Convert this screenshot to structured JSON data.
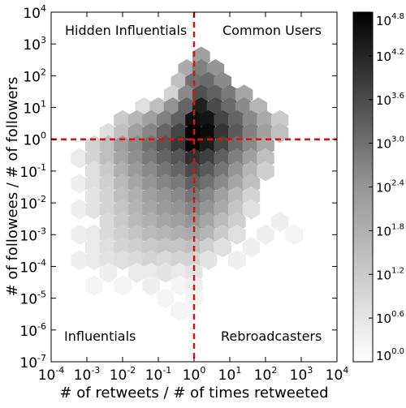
{
  "chart_data": {
    "type": "heatmap",
    "subtype": "hexbin",
    "xlabel": "# of retweets / # of times retweeted",
    "ylabel": "# of followees / # of followers",
    "x_scale": "log",
    "y_scale": "log",
    "xlim": [
      0.0001,
      10000
    ],
    "ylim": [
      1e-07,
      10000
    ],
    "x_ticks": [
      {
        "base": "10",
        "exp": "-4"
      },
      {
        "base": "10",
        "exp": "-3"
      },
      {
        "base": "10",
        "exp": "-2"
      },
      {
        "base": "10",
        "exp": "-1"
      },
      {
        "base": "10",
        "exp": "0"
      },
      {
        "base": "10",
        "exp": "1"
      },
      {
        "base": "10",
        "exp": "2"
      },
      {
        "base": "10",
        "exp": "3"
      },
      {
        "base": "10",
        "exp": "4"
      }
    ],
    "y_ticks": [
      {
        "base": "10",
        "exp": "-7"
      },
      {
        "base": "10",
        "exp": "-6"
      },
      {
        "base": "10",
        "exp": "-5"
      },
      {
        "base": "10",
        "exp": "-4"
      },
      {
        "base": "10",
        "exp": "-3"
      },
      {
        "base": "10",
        "exp": "-2"
      },
      {
        "base": "10",
        "exp": "-1"
      },
      {
        "base": "10",
        "exp": "0"
      },
      {
        "base": "10",
        "exp": "1"
      },
      {
        "base": "10",
        "exp": "2"
      },
      {
        "base": "10",
        "exp": "3"
      },
      {
        "base": "10",
        "exp": "4"
      }
    ],
    "reference_lines": {
      "x": 1,
      "y": 1,
      "color": "#e01010",
      "style": "dashed"
    },
    "quadrant_labels": {
      "top_left": "Hidden Influentials",
      "top_right": "Common Users",
      "bottom_left": "Influentials",
      "bottom_right": "Rebroadcasters"
    },
    "colorbar": {
      "colormap": "gray_r",
      "range_log10": [
        0.0,
        4.8
      ],
      "ticks": [
        {
          "base": "10",
          "exp": "0.0"
        },
        {
          "base": "10",
          "exp": "0.6"
        },
        {
          "base": "10",
          "exp": "1.2"
        },
        {
          "base": "10",
          "exp": "1.8"
        },
        {
          "base": "10",
          "exp": "2.4"
        },
        {
          "base": "10",
          "exp": "3.0"
        },
        {
          "base": "10",
          "exp": "3.6"
        },
        {
          "base": "10",
          "exp": "4.2"
        },
        {
          "base": "10",
          "exp": "4.8"
        }
      ]
    },
    "hex_bins_log10count": [
      {
        "lx": 0.2,
        "ly": 2.6,
        "v": 1.8
      },
      {
        "lx": -0.2,
        "ly": 2.2,
        "v": 1.6
      },
      {
        "lx": 0.2,
        "ly": 2.2,
        "v": 2.4
      },
      {
        "lx": 0.6,
        "ly": 2.2,
        "v": 2.0
      },
      {
        "lx": -0.4,
        "ly": 1.8,
        "v": 1.2
      },
      {
        "lx": 0.0,
        "ly": 1.8,
        "v": 2.7
      },
      {
        "lx": 0.4,
        "ly": 1.8,
        "v": 2.8
      },
      {
        "lx": 0.8,
        "ly": 1.8,
        "v": 2.2
      },
      {
        "lx": -0.6,
        "ly": 1.4,
        "v": 0.8
      },
      {
        "lx": -0.2,
        "ly": 1.4,
        "v": 2.2
      },
      {
        "lx": 0.2,
        "ly": 1.4,
        "v": 3.3
      },
      {
        "lx": 0.6,
        "ly": 1.4,
        "v": 3.0
      },
      {
        "lx": 1.0,
        "ly": 1.4,
        "v": 2.5
      },
      {
        "lx": 1.4,
        "ly": 1.4,
        "v": 1.7
      },
      {
        "lx": -1.4,
        "ly": 1.0,
        "v": 0.6
      },
      {
        "lx": -1.0,
        "ly": 1.0,
        "v": 1.2
      },
      {
        "lx": -0.6,
        "ly": 1.0,
        "v": 2.0
      },
      {
        "lx": -0.2,
        "ly": 1.0,
        "v": 2.9
      },
      {
        "lx": 0.2,
        "ly": 1.0,
        "v": 4.2
      },
      {
        "lx": 0.6,
        "ly": 1.0,
        "v": 3.4
      },
      {
        "lx": 1.0,
        "ly": 1.0,
        "v": 2.8
      },
      {
        "lx": 1.4,
        "ly": 1.0,
        "v": 2.2
      },
      {
        "lx": 1.8,
        "ly": 1.0,
        "v": 1.4
      },
      {
        "lx": -2.0,
        "ly": 0.6,
        "v": 1.0
      },
      {
        "lx": -1.6,
        "ly": 0.6,
        "v": 1.4
      },
      {
        "lx": -1.2,
        "ly": 0.6,
        "v": 1.8
      },
      {
        "lx": -0.8,
        "ly": 0.6,
        "v": 2.4
      },
      {
        "lx": -0.4,
        "ly": 0.6,
        "v": 3.0
      },
      {
        "lx": 0.0,
        "ly": 0.6,
        "v": 4.5
      },
      {
        "lx": 0.4,
        "ly": 0.6,
        "v": 4.4
      },
      {
        "lx": 0.8,
        "ly": 0.6,
        "v": 3.5
      },
      {
        "lx": 1.2,
        "ly": 0.6,
        "v": 2.9
      },
      {
        "lx": 1.6,
        "ly": 0.6,
        "v": 2.2
      },
      {
        "lx": 2.0,
        "ly": 0.6,
        "v": 1.6
      },
      {
        "lx": 2.4,
        "ly": 0.6,
        "v": 1.0
      },
      {
        "lx": -2.4,
        "ly": 0.2,
        "v": 0.6
      },
      {
        "lx": -2.0,
        "ly": 0.2,
        "v": 1.2
      },
      {
        "lx": -1.6,
        "ly": 0.2,
        "v": 1.8
      },
      {
        "lx": -1.2,
        "ly": 0.2,
        "v": 2.3
      },
      {
        "lx": -0.8,
        "ly": 0.2,
        "v": 2.9
      },
      {
        "lx": -0.4,
        "ly": 0.2,
        "v": 3.5
      },
      {
        "lx": 0.0,
        "ly": 0.2,
        "v": 4.8
      },
      {
        "lx": 0.4,
        "ly": 0.2,
        "v": 4.6
      },
      {
        "lx": 0.8,
        "ly": 0.2,
        "v": 3.8
      },
      {
        "lx": 1.2,
        "ly": 0.2,
        "v": 3.1
      },
      {
        "lx": 1.6,
        "ly": 0.2,
        "v": 2.4
      },
      {
        "lx": 2.0,
        "ly": 0.2,
        "v": 1.8
      },
      {
        "lx": 2.4,
        "ly": 0.2,
        "v": 1.2
      },
      {
        "lx": -2.8,
        "ly": -0.2,
        "v": 0.8
      },
      {
        "lx": -2.4,
        "ly": -0.2,
        "v": 1.2
      },
      {
        "lx": -2.0,
        "ly": -0.2,
        "v": 1.8
      },
      {
        "lx": -1.6,
        "ly": -0.2,
        "v": 2.2
      },
      {
        "lx": -1.2,
        "ly": -0.2,
        "v": 2.7
      },
      {
        "lx": -0.8,
        "ly": -0.2,
        "v": 3.2
      },
      {
        "lx": -0.4,
        "ly": -0.2,
        "v": 3.7
      },
      {
        "lx": 0.0,
        "ly": -0.2,
        "v": 4.7
      },
      {
        "lx": 0.4,
        "ly": -0.2,
        "v": 4.3
      },
      {
        "lx": 0.8,
        "ly": -0.2,
        "v": 3.5
      },
      {
        "lx": 1.2,
        "ly": -0.2,
        "v": 2.8
      },
      {
        "lx": 1.6,
        "ly": -0.2,
        "v": 2.2
      },
      {
        "lx": 2.0,
        "ly": -0.2,
        "v": 1.6
      },
      {
        "lx": -3.2,
        "ly": -0.6,
        "v": 0.4
      },
      {
        "lx": -2.8,
        "ly": -0.6,
        "v": 0.8
      },
      {
        "lx": -2.4,
        "ly": -0.6,
        "v": 1.2
      },
      {
        "lx": -2.0,
        "ly": -0.6,
        "v": 1.7
      },
      {
        "lx": -1.6,
        "ly": -0.6,
        "v": 2.1
      },
      {
        "lx": -1.2,
        "ly": -0.6,
        "v": 2.5
      },
      {
        "lx": -0.8,
        "ly": -0.6,
        "v": 2.9
      },
      {
        "lx": -0.4,
        "ly": -0.6,
        "v": 3.2
      },
      {
        "lx": 0.0,
        "ly": -0.6,
        "v": 3.9
      },
      {
        "lx": 0.4,
        "ly": -0.6,
        "v": 3.6
      },
      {
        "lx": 0.8,
        "ly": -0.6,
        "v": 3.0
      },
      {
        "lx": 1.2,
        "ly": -0.6,
        "v": 2.4
      },
      {
        "lx": 1.6,
        "ly": -0.6,
        "v": 1.8
      },
      {
        "lx": 2.0,
        "ly": -0.6,
        "v": 1.2
      },
      {
        "lx": -2.8,
        "ly": -1.0,
        "v": 0.6
      },
      {
        "lx": -2.4,
        "ly": -1.0,
        "v": 1.0
      },
      {
        "lx": -2.0,
        "ly": -1.0,
        "v": 1.5
      },
      {
        "lx": -1.6,
        "ly": -1.0,
        "v": 1.9
      },
      {
        "lx": -1.2,
        "ly": -1.0,
        "v": 2.2
      },
      {
        "lx": -0.8,
        "ly": -1.0,
        "v": 2.6
      },
      {
        "lx": -0.4,
        "ly": -1.0,
        "v": 2.9
      },
      {
        "lx": 0.0,
        "ly": -1.0,
        "v": 3.4
      },
      {
        "lx": 0.4,
        "ly": -1.0,
        "v": 3.1
      },
      {
        "lx": 0.8,
        "ly": -1.0,
        "v": 2.6
      },
      {
        "lx": 1.2,
        "ly": -1.0,
        "v": 2.0
      },
      {
        "lx": 1.6,
        "ly": -1.0,
        "v": 1.4
      },
      {
        "lx": 2.0,
        "ly": -1.0,
        "v": 0.9
      },
      {
        "lx": -3.2,
        "ly": -1.4,
        "v": 0.3
      },
      {
        "lx": -2.8,
        "ly": -1.4,
        "v": 0.6
      },
      {
        "lx": -2.4,
        "ly": -1.4,
        "v": 0.9
      },
      {
        "lx": -2.0,
        "ly": -1.4,
        "v": 1.3
      },
      {
        "lx": -1.6,
        "ly": -1.4,
        "v": 1.7
      },
      {
        "lx": -1.2,
        "ly": -1.4,
        "v": 2.0
      },
      {
        "lx": -0.8,
        "ly": -1.4,
        "v": 2.3
      },
      {
        "lx": -0.4,
        "ly": -1.4,
        "v": 2.5
      },
      {
        "lx": 0.0,
        "ly": -1.4,
        "v": 3.0
      },
      {
        "lx": 0.4,
        "ly": -1.4,
        "v": 2.7
      },
      {
        "lx": 0.8,
        "ly": -1.4,
        "v": 2.2
      },
      {
        "lx": 1.2,
        "ly": -1.4,
        "v": 1.7
      },
      {
        "lx": 1.6,
        "ly": -1.4,
        "v": 1.2
      },
      {
        "lx": -2.8,
        "ly": -1.8,
        "v": 0.5
      },
      {
        "lx": -2.4,
        "ly": -1.8,
        "v": 0.8
      },
      {
        "lx": -2.0,
        "ly": -1.8,
        "v": 1.2
      },
      {
        "lx": -1.6,
        "ly": -1.8,
        "v": 1.5
      },
      {
        "lx": -1.2,
        "ly": -1.8,
        "v": 1.8
      },
      {
        "lx": -0.8,
        "ly": -1.8,
        "v": 2.0
      },
      {
        "lx": -0.4,
        "ly": -1.8,
        "v": 2.2
      },
      {
        "lx": 0.0,
        "ly": -1.8,
        "v": 2.6
      },
      {
        "lx": 0.4,
        "ly": -1.8,
        "v": 2.3
      },
      {
        "lx": 0.8,
        "ly": -1.8,
        "v": 1.8
      },
      {
        "lx": 1.2,
        "ly": -1.8,
        "v": 1.3
      },
      {
        "lx": 1.6,
        "ly": -1.8,
        "v": 0.8
      },
      {
        "lx": -3.2,
        "ly": -2.2,
        "v": 0.3
      },
      {
        "lx": -2.8,
        "ly": -2.2,
        "v": 0.5
      },
      {
        "lx": -2.4,
        "ly": -2.2,
        "v": 0.8
      },
      {
        "lx": -2.0,
        "ly": -2.2,
        "v": 1.1
      },
      {
        "lx": -1.6,
        "ly": -2.2,
        "v": 1.4
      },
      {
        "lx": -1.2,
        "ly": -2.2,
        "v": 1.7
      },
      {
        "lx": -0.8,
        "ly": -2.2,
        "v": 1.9
      },
      {
        "lx": -0.4,
        "ly": -2.2,
        "v": 2.0
      },
      {
        "lx": 0.0,
        "ly": -2.2,
        "v": 2.3
      },
      {
        "lx": 0.4,
        "ly": -2.2,
        "v": 2.0
      },
      {
        "lx": 0.8,
        "ly": -2.2,
        "v": 1.6
      },
      {
        "lx": 1.2,
        "ly": -2.2,
        "v": 1.1
      },
      {
        "lx": 1.6,
        "ly": -2.2,
        "v": 0.6
      },
      {
        "lx": -2.4,
        "ly": -2.6,
        "v": 0.7
      },
      {
        "lx": -2.0,
        "ly": -2.6,
        "v": 1.0
      },
      {
        "lx": -1.6,
        "ly": -2.6,
        "v": 1.3
      },
      {
        "lx": -1.2,
        "ly": -2.6,
        "v": 1.5
      },
      {
        "lx": -0.8,
        "ly": -2.6,
        "v": 1.7
      },
      {
        "lx": -0.4,
        "ly": -2.6,
        "v": 1.8
      },
      {
        "lx": 0.0,
        "ly": -2.6,
        "v": 2.0
      },
      {
        "lx": 0.4,
        "ly": -2.6,
        "v": 1.7
      },
      {
        "lx": 0.8,
        "ly": -2.6,
        "v": 1.3
      },
      {
        "lx": 1.2,
        "ly": -2.6,
        "v": 0.9
      },
      {
        "lx": 2.4,
        "ly": -2.6,
        "v": 0.3
      },
      {
        "lx": -3.2,
        "ly": -3.0,
        "v": 0.3
      },
      {
        "lx": -2.8,
        "ly": -3.0,
        "v": 0.4
      },
      {
        "lx": -2.4,
        "ly": -3.0,
        "v": 0.7
      },
      {
        "lx": -2.0,
        "ly": -3.0,
        "v": 0.9
      },
      {
        "lx": -1.6,
        "ly": -3.0,
        "v": 1.1
      },
      {
        "lx": -1.2,
        "ly": -3.0,
        "v": 1.3
      },
      {
        "lx": -0.8,
        "ly": -3.0,
        "v": 1.4
      },
      {
        "lx": -0.4,
        "ly": -3.0,
        "v": 1.5
      },
      {
        "lx": 0.0,
        "ly": -3.0,
        "v": 1.6
      },
      {
        "lx": 0.4,
        "ly": -3.0,
        "v": 1.4
      },
      {
        "lx": 0.8,
        "ly": -3.0,
        "v": 1.0
      },
      {
        "lx": 1.2,
        "ly": -3.0,
        "v": 0.6
      },
      {
        "lx": 2.0,
        "ly": -3.0,
        "v": 0.3
      },
      {
        "lx": 2.8,
        "ly": -3.0,
        "v": 0.2
      },
      {
        "lx": -2.8,
        "ly": -3.4,
        "v": 0.4
      },
      {
        "lx": -2.4,
        "ly": -3.4,
        "v": 0.6
      },
      {
        "lx": -2.0,
        "ly": -3.4,
        "v": 0.8
      },
      {
        "lx": -1.6,
        "ly": -3.4,
        "v": 0.9
      },
      {
        "lx": -1.2,
        "ly": -3.4,
        "v": 1.0
      },
      {
        "lx": -0.8,
        "ly": -3.4,
        "v": 1.1
      },
      {
        "lx": -0.4,
        "ly": -3.4,
        "v": 1.1
      },
      {
        "lx": 0.0,
        "ly": -3.4,
        "v": 1.2
      },
      {
        "lx": 0.4,
        "ly": -3.4,
        "v": 0.9
      },
      {
        "lx": 0.8,
        "ly": -3.4,
        "v": 0.6
      },
      {
        "lx": 1.6,
        "ly": -3.4,
        "v": 0.3
      },
      {
        "lx": -3.2,
        "ly": -3.8,
        "v": 0.3
      },
      {
        "lx": -2.8,
        "ly": -3.8,
        "v": 0.4
      },
      {
        "lx": -2.4,
        "ly": -3.8,
        "v": 0.5
      },
      {
        "lx": -2.0,
        "ly": -3.8,
        "v": 0.6
      },
      {
        "lx": -1.6,
        "ly": -3.8,
        "v": 0.7
      },
      {
        "lx": -1.2,
        "ly": -3.8,
        "v": 0.8
      },
      {
        "lx": -0.8,
        "ly": -3.8,
        "v": 0.7
      },
      {
        "lx": -0.4,
        "ly": -3.8,
        "v": 0.8
      },
      {
        "lx": 0.0,
        "ly": -3.8,
        "v": 0.8
      },
      {
        "lx": 0.4,
        "ly": -3.8,
        "v": 0.5
      },
      {
        "lx": 1.2,
        "ly": -3.8,
        "v": 0.3
      },
      {
        "lx": -2.4,
        "ly": -4.2,
        "v": 0.3
      },
      {
        "lx": -1.6,
        "ly": -4.2,
        "v": 0.4
      },
      {
        "lx": -1.2,
        "ly": -4.2,
        "v": 0.4
      },
      {
        "lx": -0.8,
        "ly": -4.2,
        "v": 0.5
      },
      {
        "lx": -0.4,
        "ly": -4.2,
        "v": 0.4
      },
      {
        "lx": 0.0,
        "ly": -4.2,
        "v": 0.5
      },
      {
        "lx": -2.8,
        "ly": -4.6,
        "v": 0.2
      },
      {
        "lx": -2.0,
        "ly": -4.6,
        "v": 0.2
      },
      {
        "lx": -1.2,
        "ly": -4.6,
        "v": 0.3
      },
      {
        "lx": -0.4,
        "ly": -4.6,
        "v": 0.2
      },
      {
        "lx": 0.0,
        "ly": -4.6,
        "v": 0.3
      },
      {
        "lx": -0.8,
        "ly": -5.0,
        "v": 0.2
      },
      {
        "lx": 0.0,
        "ly": -5.0,
        "v": 0.2
      },
      {
        "lx": -0.4,
        "ly": -5.4,
        "v": 0.2
      }
    ]
  }
}
